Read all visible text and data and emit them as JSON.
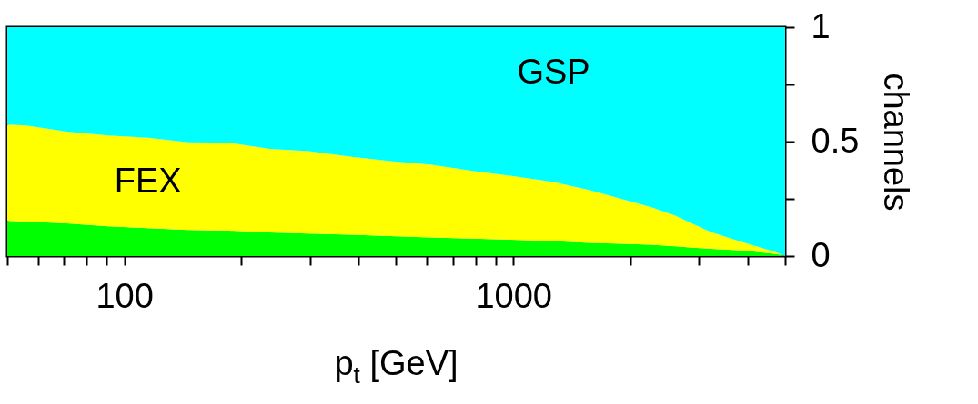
{
  "chart_data": {
    "type": "area",
    "stacked": true,
    "xlabel": "p$_{t}$ [GeV]",
    "ylabel": "channels",
    "log": "x",
    "legend": false,
    "grid": false,
    "x": [
      50,
      56,
      71,
      91,
      115,
      146,
      187,
      236,
      298,
      384,
      484,
      610,
      785,
      990,
      1270,
      1575,
      1830,
      2265,
      2610,
      2900,
      3230,
      3940,
      4700,
      5000
    ],
    "xlim": [
      50,
      5000
    ],
    "xticks": [
      {
        "value": 50,
        "label": null
      },
      {
        "value": 60,
        "label": null
      },
      {
        "value": 70,
        "label": null
      },
      {
        "value": 80,
        "label": null
      },
      {
        "value": 90,
        "label": null
      },
      100,
      {
        "value": 200,
        "label": null
      },
      {
        "value": 300,
        "label": null
      },
      {
        "value": 400,
        "label": null
      },
      {
        "value": 500,
        "label": null
      },
      {
        "value": 600,
        "label": null
      },
      {
        "value": 700,
        "label": null
      },
      {
        "value": 800,
        "label": null
      },
      {
        "value": 900,
        "label": null
      },
      1000,
      {
        "value": 2000,
        "label": null
      },
      {
        "value": 3000,
        "label": null
      },
      {
        "value": 4000,
        "label": null
      },
      {
        "value": 5000,
        "label": null
      }
    ],
    "ylim": [
      0,
      1
    ],
    "yticks": [
      0,
      {
        "value": 0.25,
        "label": null
      },
      0.5,
      {
        "value": 0.75,
        "label": null
      },
      1
    ],
    "series": [
      {
        "color": "#00ff00",
        "values": [
          0.154,
          0.151,
          0.143,
          0.13,
          0.122,
          0.114,
          0.111,
          0.103,
          0.098,
          0.093,
          0.087,
          0.081,
          0.076,
          0.071,
          0.065,
          0.058,
          0.055,
          0.05,
          0.043,
          0.037,
          0.032,
          0.024,
          0.01,
          0
        ]
      },
      {
        "name": "FEX",
        "color": "#ffff00",
        "values": [
          0.42,
          0.419,
          0.401,
          0.397,
          0.395,
          0.383,
          0.384,
          0.365,
          0.36,
          0.341,
          0.328,
          0.319,
          0.296,
          0.279,
          0.258,
          0.23,
          0.202,
          0.163,
          0.134,
          0.103,
          0.072,
          0.034,
          0.009,
          0
        ]
      },
      {
        "name": "GSP",
        "color": "#00ffff",
        "values": [
          0.426,
          0.43,
          0.456,
          0.473,
          0.483,
          0.503,
          0.505,
          0.532,
          0.542,
          0.566,
          0.585,
          0.6,
          0.628,
          0.65,
          0.677,
          0.712,
          0.743,
          0.787,
          0.823,
          0.86,
          0.896,
          0.942,
          0.981,
          1
        ]
      }
    ]
  }
}
